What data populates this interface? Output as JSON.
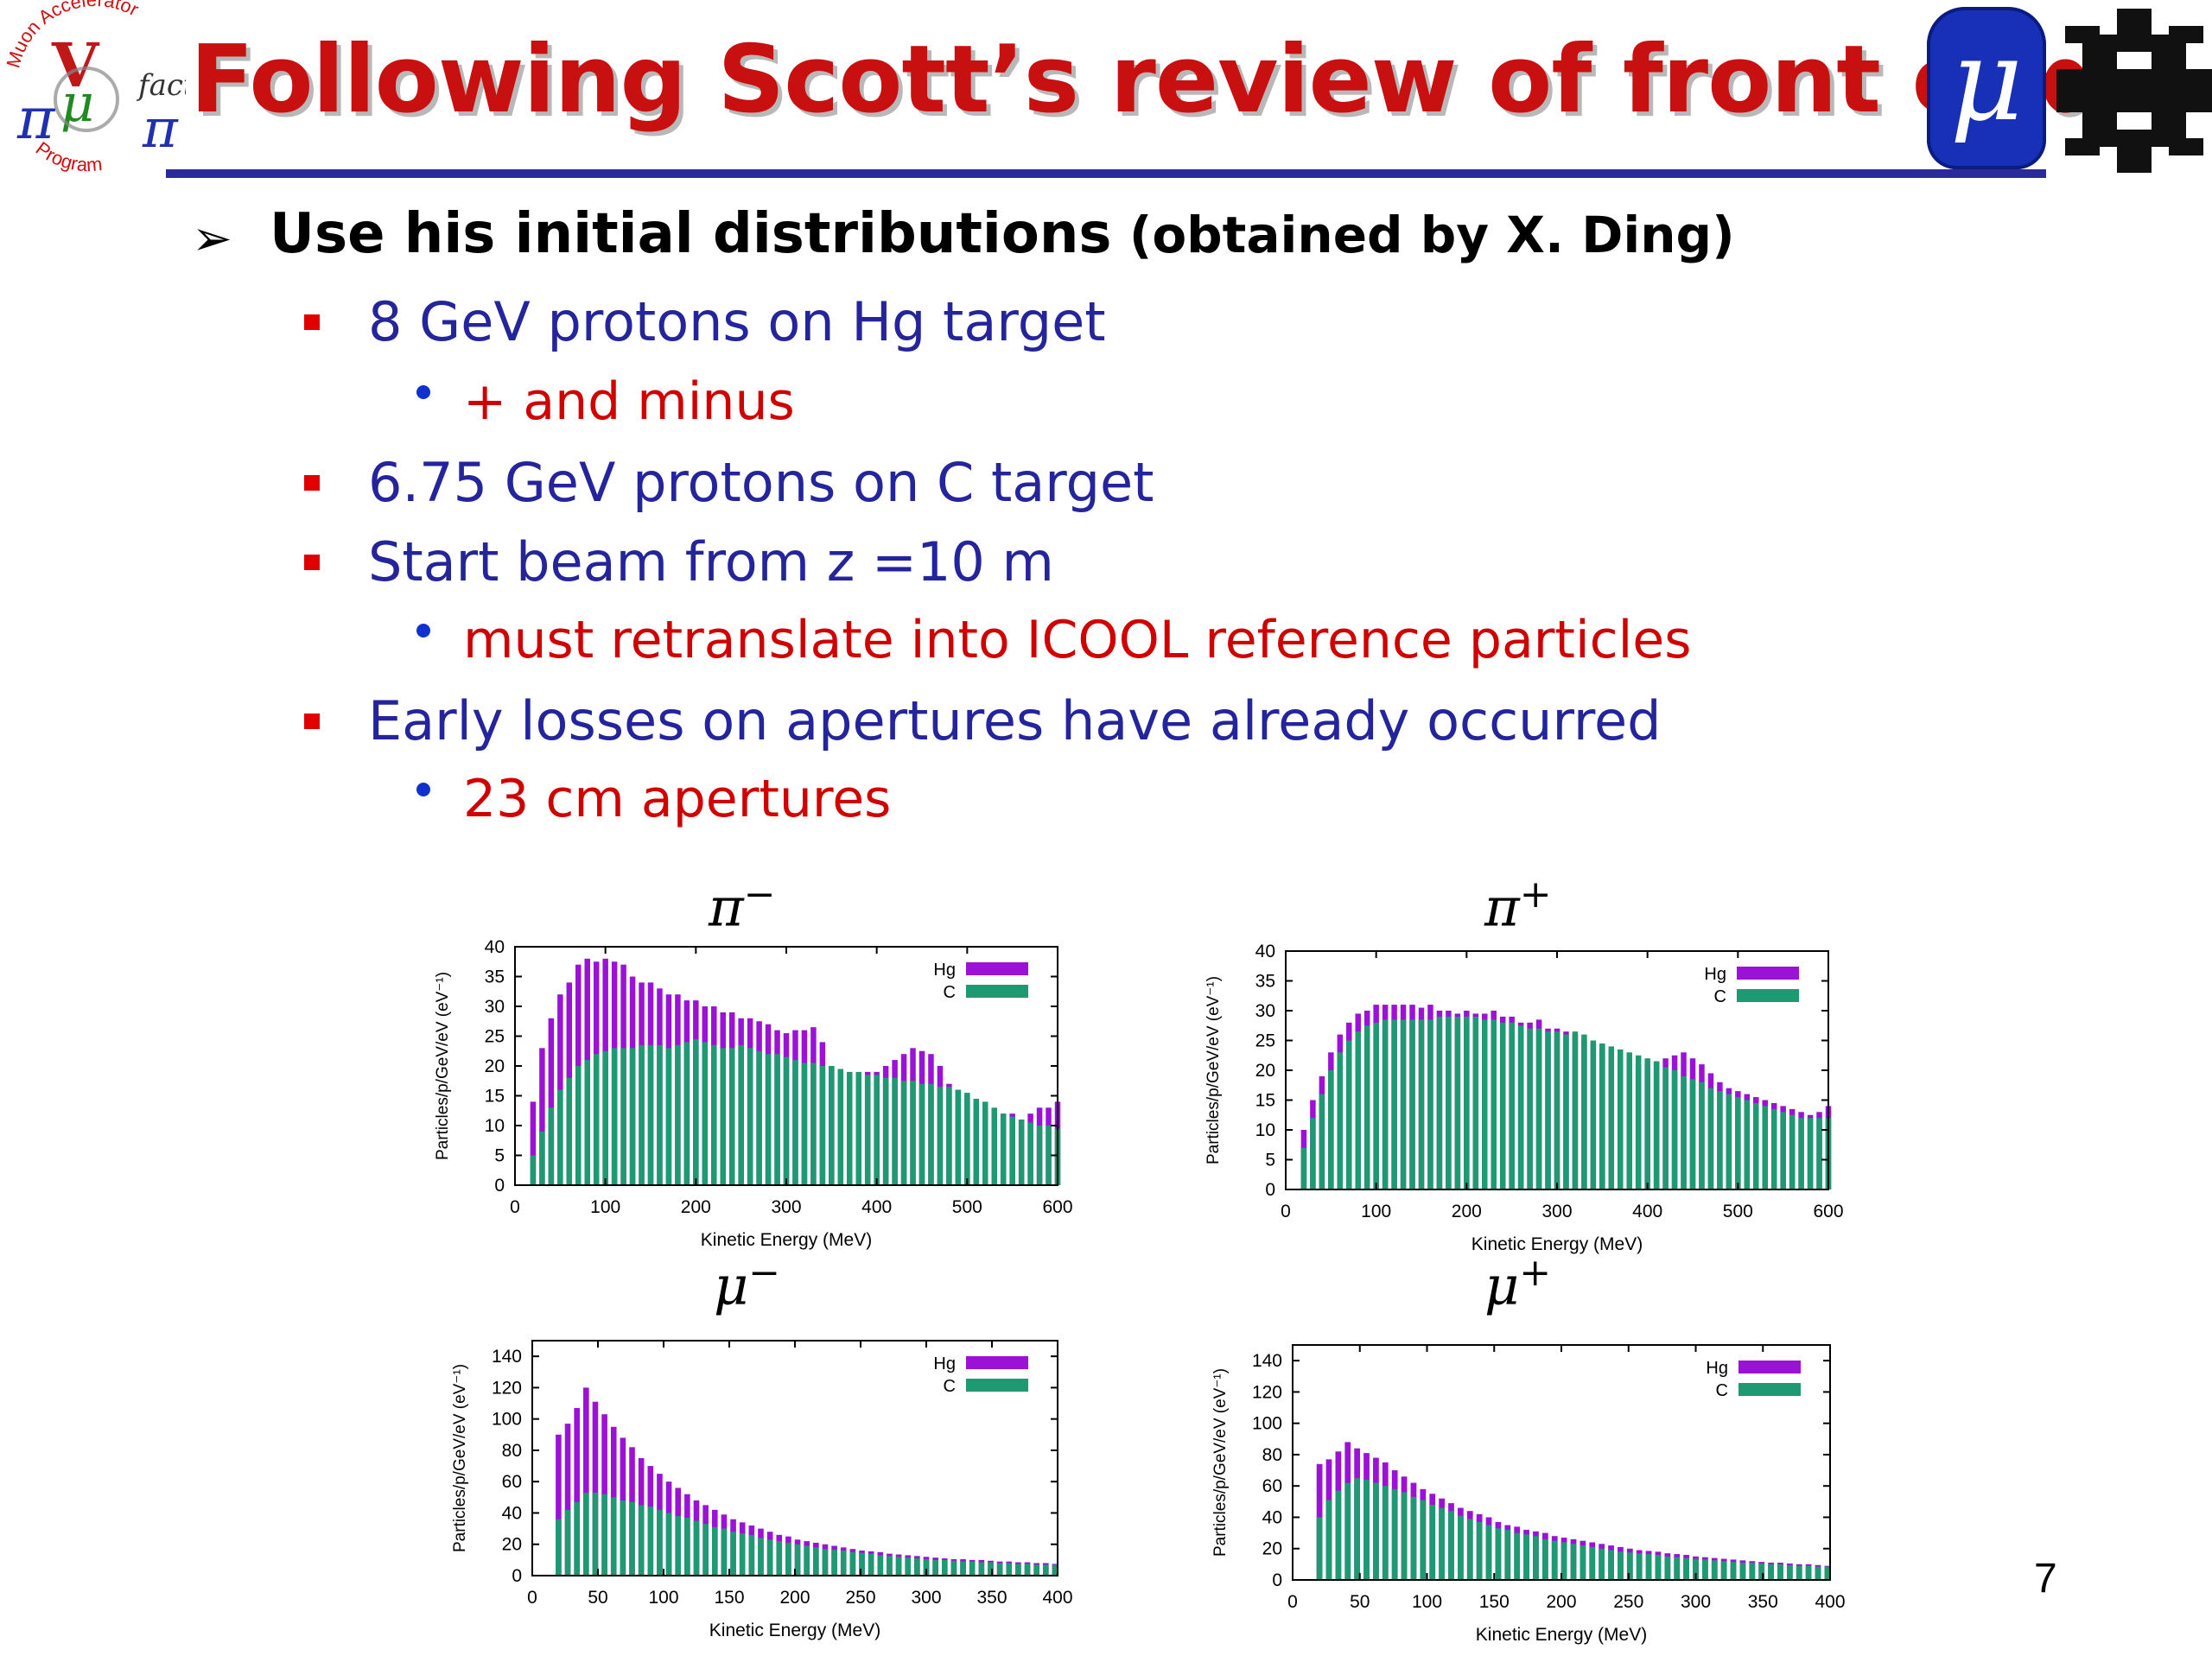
{
  "header": {
    "title": "Following Scott’s review of front end",
    "logo_left_text": {
      "arc_top": "Muon Accelerator",
      "arc_bottom": "Program",
      "script": "fact"
    },
    "logo_right_glyph": "μ"
  },
  "bullets": [
    {
      "level": 1,
      "text": "Use his initial distributions",
      "suffix": "(obtained by X. Ding)"
    },
    {
      "level": 2,
      "text": "8 GeV protons on Hg target"
    },
    {
      "level": 3,
      "text": "+ and minus"
    },
    {
      "level": 2,
      "text": "6.75 GeV protons on C target"
    },
    {
      "level": 2,
      "text": "Start beam from z =10 m"
    },
    {
      "level": 3,
      "text": "must retranslate into ICOOL reference particles"
    },
    {
      "level": 2,
      "text": "Early losses on apertures have already occurred"
    },
    {
      "level": 3,
      "text": "23 cm apertures"
    }
  ],
  "page_number": "7",
  "colors": {
    "hg": "#9b11d6",
    "c": "#1e9a72",
    "title": "#c81010",
    "rule": "#2a2a9a"
  },
  "chart_data": [
    {
      "type": "bar",
      "title_base": "π",
      "title_sup": "−",
      "xlabel": "Kinetic Energy (MeV)",
      "ylabel": "Particles/p/GeV/eV (eV⁻¹)",
      "xlim": [
        0,
        600
      ],
      "ylim": [
        0,
        40
      ],
      "xticks": [
        0,
        100,
        200,
        300,
        400,
        500,
        600
      ],
      "yticks": [
        0,
        5,
        10,
        15,
        20,
        25,
        30,
        35,
        40
      ],
      "legend_position": "top-right",
      "grid": false,
      "x": [
        20,
        30,
        40,
        50,
        60,
        70,
        80,
        90,
        100,
        110,
        120,
        130,
        140,
        150,
        160,
        170,
        180,
        190,
        200,
        210,
        220,
        230,
        240,
        250,
        260,
        270,
        280,
        290,
        300,
        310,
        320,
        330,
        340,
        350,
        360,
        370,
        380,
        390,
        400,
        410,
        420,
        430,
        440,
        450,
        460,
        470,
        480,
        490,
        500,
        510,
        520,
        530,
        540,
        550,
        560,
        570,
        580,
        590,
        600
      ],
      "series": [
        {
          "name": "Hg",
          "values": [
            14,
            23,
            28,
            32,
            34,
            37,
            38,
            37.5,
            38,
            37.5,
            37,
            35,
            34,
            34,
            33,
            32,
            32,
            31,
            31,
            30,
            30,
            29,
            29,
            28,
            28,
            27.5,
            27,
            26,
            25.5,
            26,
            26,
            26.5,
            24,
            20,
            19,
            18,
            18,
            19,
            19,
            20,
            21,
            22,
            23,
            22.5,
            22,
            20,
            17,
            16,
            15,
            14,
            13,
            12,
            12,
            12,
            11,
            12,
            13,
            13,
            14
          ]
        },
        {
          "name": "C",
          "values": [
            5,
            9,
            13,
            16,
            18,
            20,
            21,
            22,
            22.5,
            23,
            23,
            23,
            23.5,
            23.5,
            23.5,
            23,
            23.5,
            24,
            24.5,
            24,
            23.5,
            23,
            23,
            23.5,
            23,
            22.5,
            22,
            22,
            21.5,
            21,
            20.5,
            20.5,
            20,
            20,
            19.5,
            19,
            19,
            18.5,
            18.5,
            18,
            18,
            17.5,
            17.5,
            17,
            17,
            16.5,
            16.5,
            16,
            15.5,
            14.5,
            14,
            13,
            12,
            11.5,
            11,
            10.5,
            10,
            10,
            9.5
          ]
        }
      ]
    },
    {
      "type": "bar",
      "title_base": "π",
      "title_sup": "+",
      "xlabel": "Kinetic Energy (MeV)",
      "ylabel": "Particles/p/GeV/eV (eV⁻¹)",
      "xlim": [
        0,
        600
      ],
      "ylim": [
        0,
        40
      ],
      "xticks": [
        0,
        100,
        200,
        300,
        400,
        500,
        600
      ],
      "yticks": [
        0,
        5,
        10,
        15,
        20,
        25,
        30,
        35,
        40
      ],
      "legend_position": "top-right",
      "grid": false,
      "x": [
        20,
        30,
        40,
        50,
        60,
        70,
        80,
        90,
        100,
        110,
        120,
        130,
        140,
        150,
        160,
        170,
        180,
        190,
        200,
        210,
        220,
        230,
        240,
        250,
        260,
        270,
        280,
        290,
        300,
        310,
        320,
        330,
        340,
        350,
        360,
        370,
        380,
        390,
        400,
        410,
        420,
        430,
        440,
        450,
        460,
        470,
        480,
        490,
        500,
        510,
        520,
        530,
        540,
        550,
        560,
        570,
        580,
        590,
        600
      ],
      "series": [
        {
          "name": "Hg",
          "values": [
            10,
            15,
            19,
            23,
            26,
            28,
            29.5,
            30,
            31,
            31,
            31,
            31,
            31,
            30.5,
            31,
            30,
            30,
            29.5,
            30,
            29.5,
            29.5,
            30,
            29,
            29,
            28,
            28,
            28.5,
            27,
            27,
            26.5,
            26,
            25,
            24.5,
            24,
            23.5,
            23,
            22,
            21,
            21,
            21.5,
            22,
            22.5,
            23,
            22,
            21,
            19.5,
            18,
            17,
            16.5,
            16,
            15.5,
            15,
            14.5,
            14,
            13.5,
            13,
            12.5,
            13,
            14
          ]
        },
        {
          "name": "C",
          "values": [
            7,
            12,
            16,
            20,
            23,
            25,
            26.5,
            27.5,
            28,
            28.5,
            28.5,
            28.5,
            28.5,
            28.5,
            28.5,
            29,
            29,
            29,
            29,
            29,
            28.5,
            28.5,
            28,
            28,
            27.5,
            27,
            27,
            26.5,
            26.5,
            26,
            26.5,
            26,
            25,
            24.5,
            24,
            23.5,
            23,
            22.5,
            22,
            21.5,
            20.5,
            20,
            19,
            18.5,
            18,
            17,
            16.5,
            16,
            15.5,
            15,
            14.5,
            14,
            13.5,
            13,
            12.5,
            12,
            12,
            12,
            12
          ]
        }
      ]
    },
    {
      "type": "bar",
      "title_base": "μ",
      "title_sup": "−",
      "xlabel": "Kinetic Energy (MeV)",
      "ylabel": "Particles/p/GeV/eV (eV⁻¹)",
      "xlim": [
        0,
        400
      ],
      "ylim": [
        0,
        150
      ],
      "xticks": [
        0,
        50,
        100,
        150,
        200,
        250,
        300,
        350,
        400
      ],
      "yticks": [
        0,
        20,
        40,
        60,
        80,
        100,
        120,
        140
      ],
      "legend_position": "top-right",
      "grid": false,
      "x": [
        20,
        27,
        34,
        41,
        48,
        55,
        62,
        69,
        76,
        83,
        90,
        97,
        104,
        111,
        118,
        125,
        132,
        139,
        146,
        153,
        160,
        167,
        174,
        181,
        188,
        195,
        202,
        209,
        216,
        223,
        230,
        237,
        244,
        251,
        258,
        265,
        272,
        279,
        286,
        293,
        300,
        307,
        314,
        321,
        328,
        335,
        342,
        349,
        356,
        363,
        370,
        377,
        384,
        391,
        398
      ],
      "series": [
        {
          "name": "Hg",
          "values": [
            90,
            97,
            107,
            120,
            111,
            103,
            95,
            88,
            82,
            75,
            70,
            65,
            60,
            56,
            52,
            48,
            45,
            42,
            39,
            36,
            34,
            32,
            30,
            28,
            26,
            25,
            23,
            22,
            21,
            20,
            19,
            18,
            17,
            16,
            15.5,
            15,
            14,
            13.5,
            13,
            12.5,
            12,
            11.5,
            11,
            10.5,
            10.5,
            10,
            10,
            9.5,
            9,
            9,
            8.5,
            8.5,
            8,
            8,
            7.5
          ]
        },
        {
          "name": "C",
          "values": [
            36,
            42,
            47,
            53,
            53,
            52,
            50,
            48,
            47,
            45,
            44,
            42,
            40,
            38,
            37,
            35,
            33,
            31,
            30,
            28,
            27,
            26,
            24,
            23,
            22,
            21,
            20,
            19,
            18,
            17,
            16.5,
            16,
            15,
            14.5,
            14,
            13,
            12.5,
            12,
            11.5,
            11,
            10.5,
            10,
            10,
            9.5,
            9,
            9,
            8.5,
            8.5,
            8,
            8,
            7.5,
            7.5,
            7,
            7,
            7
          ]
        }
      ]
    },
    {
      "type": "bar",
      "title_base": "μ",
      "title_sup": "+",
      "xlabel": "Kinetic Energy (MeV)",
      "ylabel": "Particles/p/GeV/eV (eV⁻¹)",
      "xlim": [
        0,
        400
      ],
      "ylim": [
        0,
        150
      ],
      "xticks": [
        0,
        50,
        100,
        150,
        200,
        250,
        300,
        350,
        400
      ],
      "yticks": [
        0,
        20,
        40,
        60,
        80,
        100,
        120,
        140
      ],
      "legend_position": "top-right",
      "grid": false,
      "x": [
        20,
        27,
        34,
        41,
        48,
        55,
        62,
        69,
        76,
        83,
        90,
        97,
        104,
        111,
        118,
        125,
        132,
        139,
        146,
        153,
        160,
        167,
        174,
        181,
        188,
        195,
        202,
        209,
        216,
        223,
        230,
        237,
        244,
        251,
        258,
        265,
        272,
        279,
        286,
        293,
        300,
        307,
        314,
        321,
        328,
        335,
        342,
        349,
        356,
        363,
        370,
        377,
        384,
        391,
        398
      ],
      "series": [
        {
          "name": "Hg",
          "values": [
            74,
            77,
            82,
            88,
            84,
            81,
            78,
            75,
            70,
            66,
            62,
            58,
            55,
            52,
            49,
            46,
            44,
            42,
            40,
            37,
            35,
            34,
            32,
            31,
            30,
            28,
            27,
            26,
            25,
            24,
            23,
            22,
            21,
            20,
            19,
            18.5,
            18,
            17,
            16.5,
            16,
            15,
            14.5,
            14,
            13.5,
            13,
            12.5,
            12,
            11.5,
            11,
            11,
            10.5,
            10,
            10,
            9.5,
            9
          ]
        },
        {
          "name": "C",
          "values": [
            40,
            51,
            57,
            62,
            65,
            64,
            62,
            60,
            58,
            56,
            53,
            51,
            48,
            46,
            44,
            41,
            39,
            37,
            35,
            33,
            32,
            30,
            29,
            28,
            26,
            25,
            24,
            23,
            22,
            21,
            20,
            19,
            18,
            17.5,
            17,
            16.5,
            16,
            15,
            14.5,
            14,
            13.5,
            13,
            12.5,
            12,
            11.5,
            11,
            11,
            10.5,
            10,
            10,
            9.5,
            9,
            9,
            8.5,
            8.5
          ]
        }
      ]
    }
  ]
}
